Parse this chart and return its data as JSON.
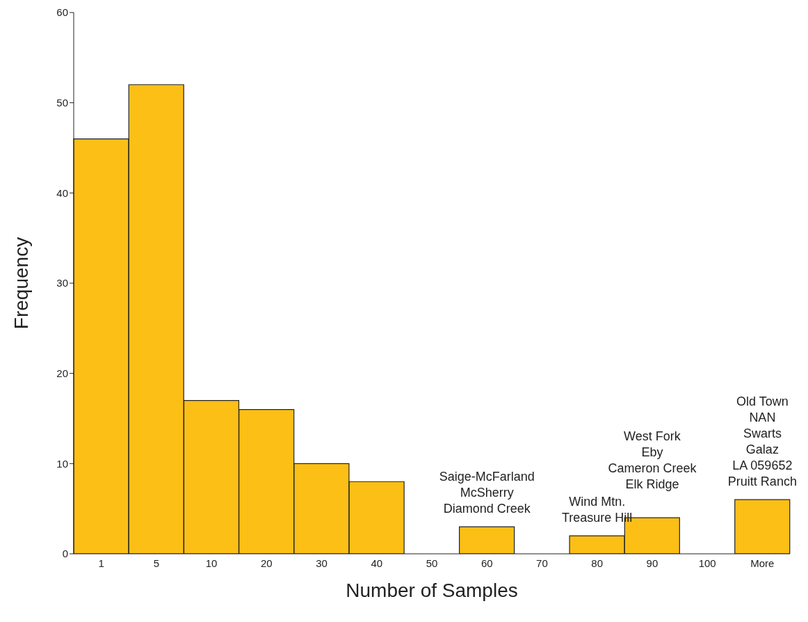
{
  "chart_data": {
    "type": "bar",
    "xlabel": "Number of Samples",
    "ylabel": "Frequency",
    "categories": [
      "1",
      "5",
      "10",
      "20",
      "30",
      "40",
      "50",
      "60",
      "70",
      "80",
      "90",
      "100",
      "More"
    ],
    "values": [
      46,
      52,
      17,
      16,
      10,
      8,
      0,
      3,
      0,
      2,
      4,
      0,
      6
    ],
    "color": "#fbbf16",
    "ylim": [
      0,
      60
    ],
    "yticks": [
      0,
      10,
      20,
      30,
      40,
      50,
      60
    ],
    "grid": false,
    "legend": false,
    "annotations": [
      {
        "text": "Saige-McFarland\nMcSherry\nDiamond Creek",
        "x": "60",
        "y": 3
      },
      {
        "text": "Wind Mtn.\nTreasure Hill",
        "x": "80",
        "y": 2
      },
      {
        "text": "West Fork\nEby\nCameron Creek\nElk Ridge",
        "x": "90",
        "y": 4
      },
      {
        "text": "Old Town\nNAN\nSwarts\nGalaz\nLA 059652\nPruitt Ranch",
        "x": "More",
        "y": 6
      }
    ]
  }
}
